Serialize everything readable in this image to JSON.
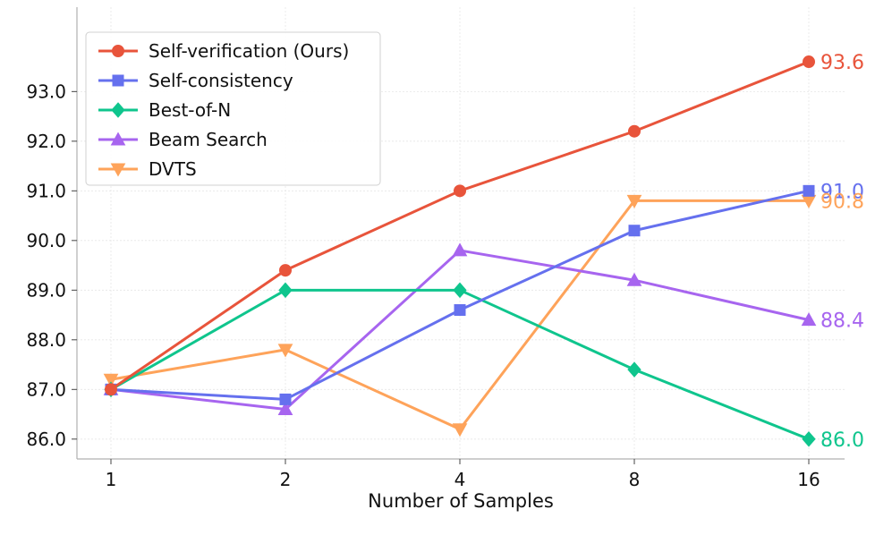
{
  "chart_data": {
    "type": "line",
    "title": "",
    "xlabel": "Number of Samples",
    "ylabel": "",
    "categories": [
      "1",
      "2",
      "4",
      "8",
      "16"
    ],
    "ylim": [
      85.6,
      94.7
    ],
    "yticks": [
      86.0,
      87.0,
      88.0,
      89.0,
      90.0,
      91.0,
      92.0,
      93.0
    ],
    "ytick_labels": [
      "86.0",
      "87.0",
      "88.0",
      "89.0",
      "90.0",
      "91.0",
      "92.0",
      "93.0"
    ],
    "grid": true,
    "legend_position": "top-left",
    "series": [
      {
        "name": "Self-verification (Ours)",
        "color": "#e8543b",
        "marker": "circle",
        "values": [
          87.0,
          89.4,
          91.0,
          92.2,
          93.6
        ],
        "end_label": "93.6"
      },
      {
        "name": "Self-consistency",
        "color": "#6570ee",
        "marker": "square",
        "values": [
          87.0,
          86.8,
          88.6,
          90.2,
          91.0
        ],
        "end_label": "91.0"
      },
      {
        "name": "Best-of-N",
        "color": "#0fc58d",
        "marker": "diamond",
        "values": [
          87.0,
          89.0,
          89.0,
          87.4,
          86.0
        ],
        "end_label": "86.0"
      },
      {
        "name": "Beam Search",
        "color": "#a765ef",
        "marker": "triangle-up",
        "values": [
          87.0,
          86.6,
          89.8,
          89.2,
          88.4
        ],
        "end_label": "88.4"
      },
      {
        "name": "DVTS",
        "color": "#fea35a",
        "marker": "triangle-down",
        "values": [
          87.2,
          87.8,
          86.2,
          90.8,
          90.8
        ],
        "end_label": "90.8"
      }
    ]
  }
}
